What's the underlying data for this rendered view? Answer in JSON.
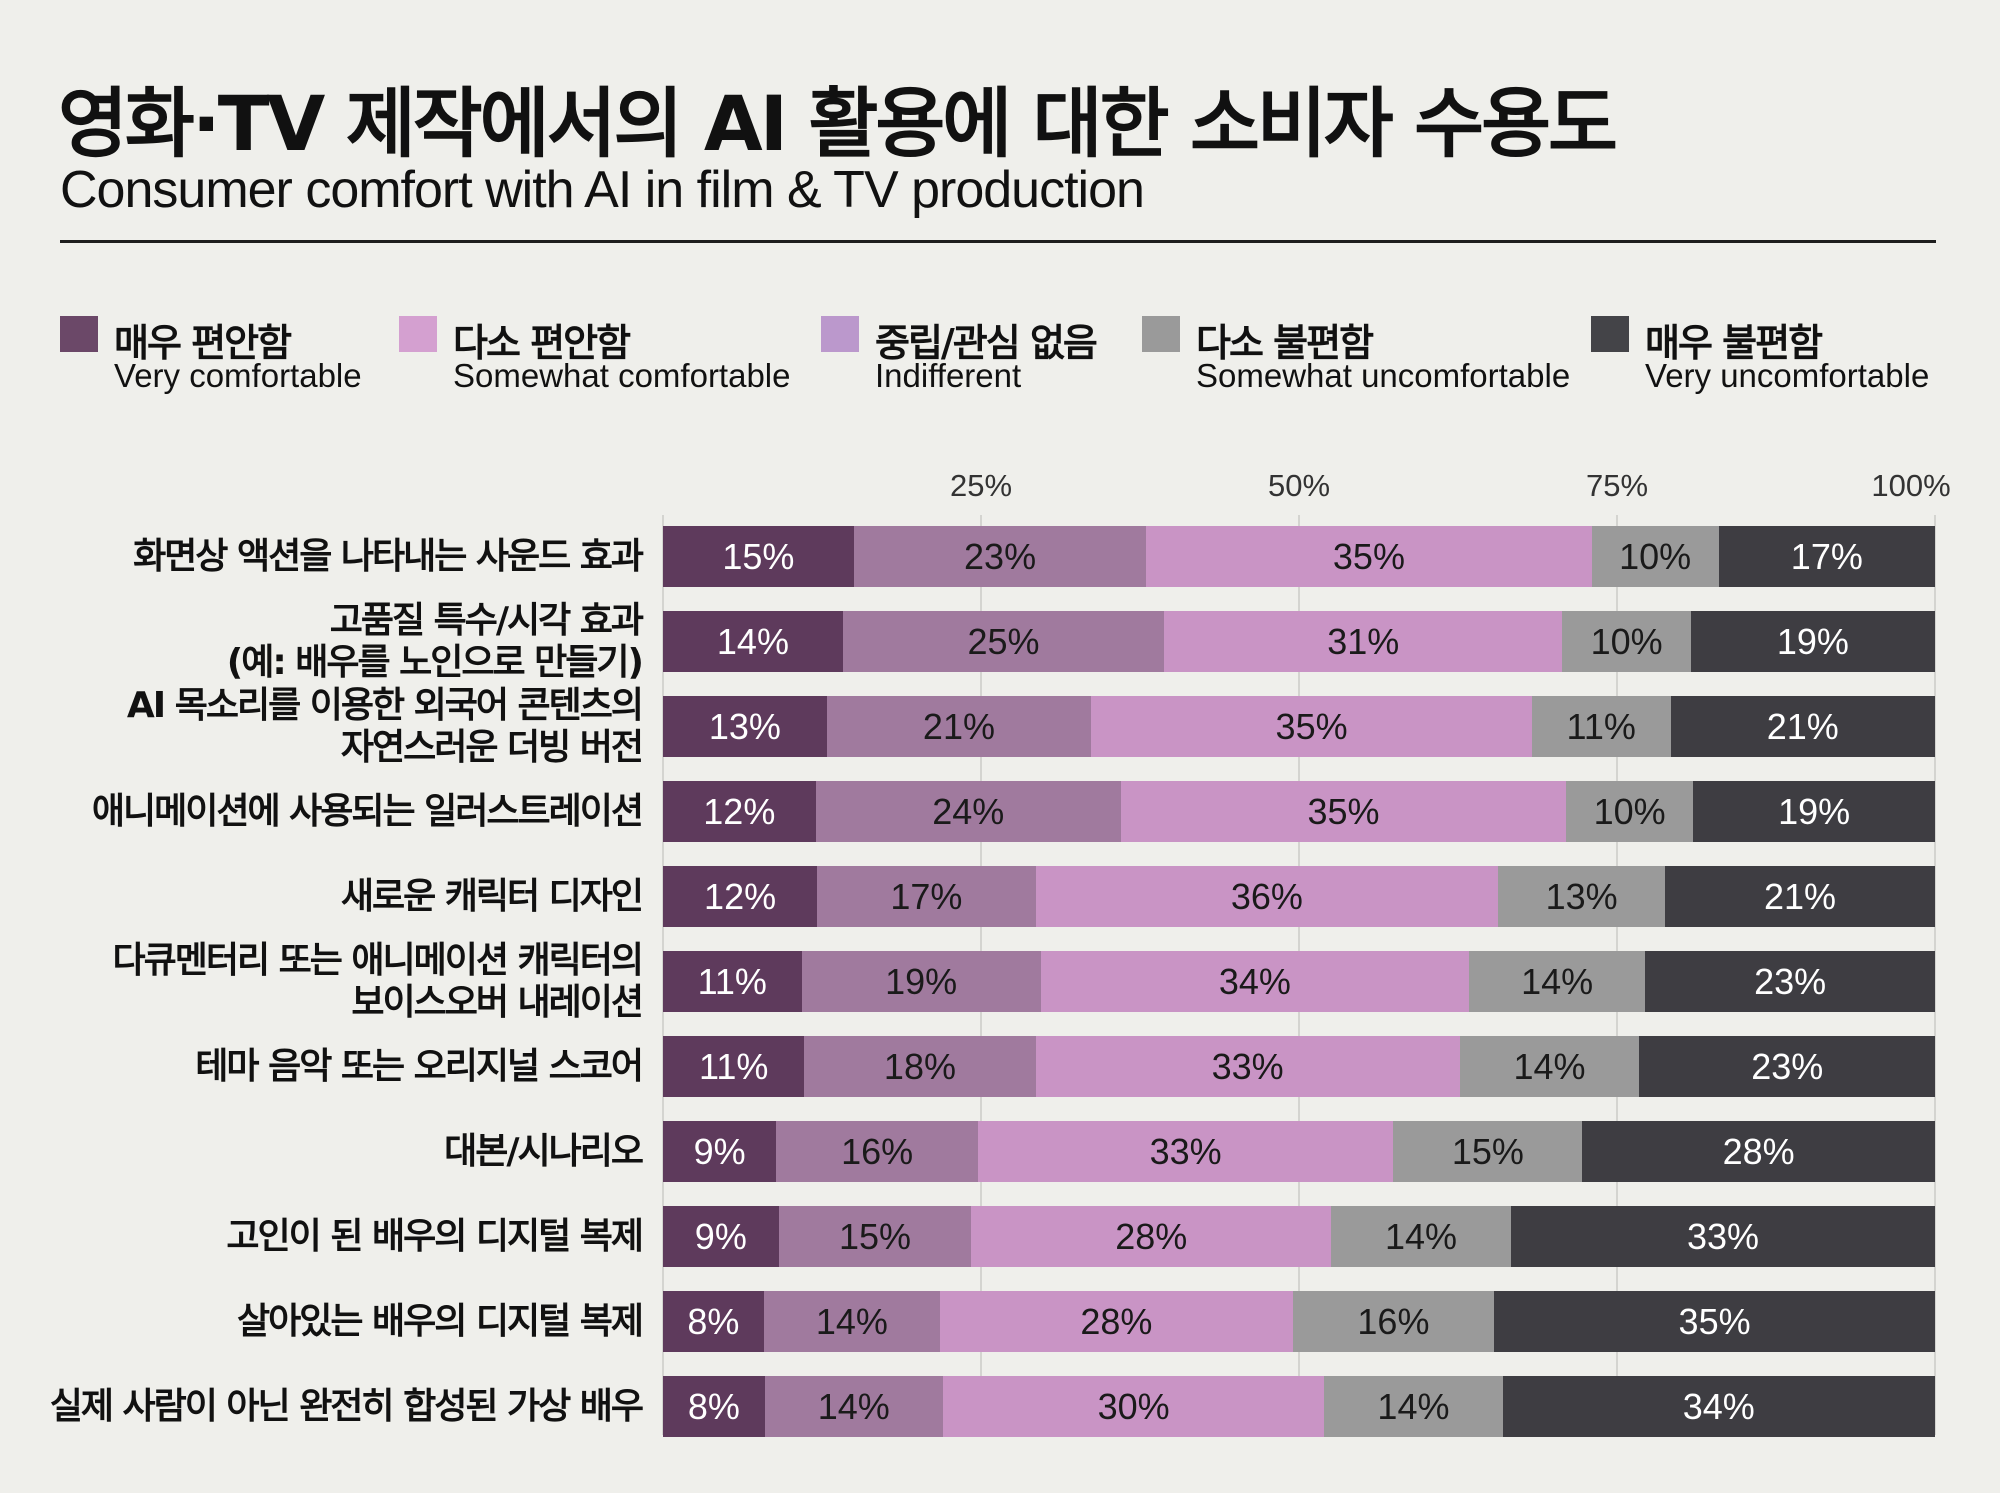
{
  "title": "영화·TV 제작에서의 AI 활용에 대한 소비자 수용도",
  "subtitle": "Consumer comfort with AI in film & TV production",
  "legend": [
    {
      "ko": "매우 편안함",
      "en": "Very comfortable",
      "color": "#6b4868"
    },
    {
      "ko": "다소 편안함",
      "en": "Somewhat comfortable",
      "color": "#d4a0d0"
    },
    {
      "ko": "중립/관심 없음",
      "en": "Indifferent",
      "color": "#bb98cc"
    },
    {
      "ko": "다소 불편함",
      "en": "Somewhat uncomfortable",
      "color": "#9a9a9a"
    },
    {
      "ko": "매우 불편함",
      "en": "Very uncomfortable",
      "color": "#444448"
    }
  ],
  "chart_data": {
    "type": "bar",
    "stacked": true,
    "orientation": "horizontal",
    "title": "영화·TV 제작에서의 AI 활용에 대한 소비자 수용도",
    "xlim": [
      0,
      100
    ],
    "x_ticks": [
      "25%",
      "50%",
      "75%",
      "100%"
    ],
    "series_names": [
      "매우 편안함",
      "다소 편안함",
      "중립/관심 없음",
      "다소 불편함",
      "매우 불편함"
    ],
    "series_colors": [
      "#5e3a5c",
      "#a07a9e",
      "#c994c5",
      "#9a9a9a",
      "#3e3d42"
    ],
    "series_text_colors": [
      "#ffffff",
      "#1a1a1a",
      "#1a1a1a",
      "#1a1a1a",
      "#ffffff"
    ],
    "categories": [
      [
        "화면상 액션을 나타내는 사운드 효과"
      ],
      [
        "고품질 특수/시각 효과",
        "(예: 배우를 노인으로 만들기)"
      ],
      [
        "AI 목소리를 이용한 외국어 콘텐츠의",
        "자연스러운 더빙 버전"
      ],
      [
        "애니메이션에 사용되는 일러스트레이션"
      ],
      [
        "새로운 캐릭터 디자인"
      ],
      [
        "다큐멘터리 또는 애니메이션 캐릭터의",
        "보이스오버 내레이션"
      ],
      [
        "테마 음악 또는 오리지널 스코어"
      ],
      [
        "대본/시나리오"
      ],
      [
        "고인이 된 배우의 디지털 복제"
      ],
      [
        "살아있는 배우의 디지털 복제"
      ],
      [
        "실제 사람이 아닌 완전히 합성된 가상 배우"
      ]
    ],
    "values": [
      [
        15,
        23,
        35,
        10,
        17
      ],
      [
        14,
        25,
        31,
        10,
        19
      ],
      [
        13,
        21,
        35,
        11,
        21
      ],
      [
        12,
        24,
        35,
        10,
        19
      ],
      [
        12,
        17,
        36,
        13,
        21
      ],
      [
        11,
        19,
        34,
        14,
        23
      ],
      [
        11,
        18,
        33,
        14,
        23
      ],
      [
        9,
        16,
        33,
        15,
        28
      ],
      [
        9,
        15,
        28,
        14,
        33
      ],
      [
        8,
        14,
        28,
        16,
        35
      ],
      [
        8,
        14,
        30,
        14,
        34
      ]
    ]
  }
}
